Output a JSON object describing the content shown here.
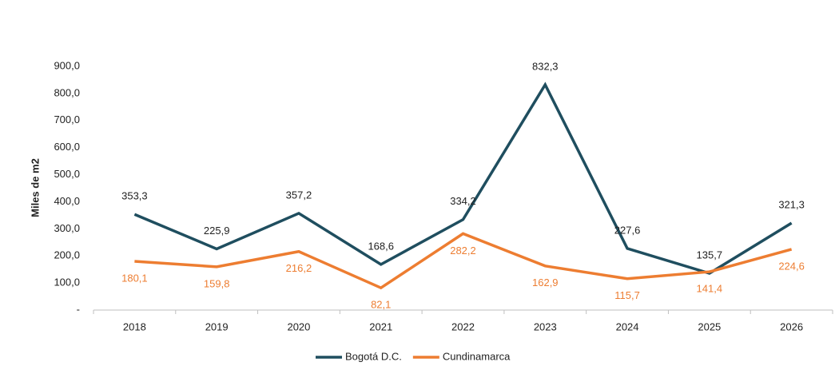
{
  "chart_data": {
    "type": "line",
    "y_label": "Miles de m2",
    "categories": [
      "2018",
      "2019",
      "2020",
      "2021",
      "2022",
      "2023",
      "2024",
      "2025",
      "2026"
    ],
    "series": [
      {
        "name": "Bogotá D.C.",
        "color": "#1f4e5f",
        "values": [
          353.3,
          225.9,
          357.2,
          168.6,
          334.2,
          832.3,
          227.6,
          135.7,
          321.3
        ],
        "value_labels": [
          "353,3",
          "225,9",
          "357,2",
          "168,6",
          "334,2",
          "832,3",
          "227,6",
          "135,7",
          "321,3"
        ]
      },
      {
        "name": "Cundinamarca",
        "color": "#ed7d31",
        "values": [
          180.1,
          159.8,
          216.2,
          82.1,
          282.2,
          162.9,
          115.7,
          141.4,
          224.6
        ],
        "value_labels": [
          "180,1",
          "159,8",
          "216,2",
          "82,1",
          "282,2",
          "162,9",
          "115,7",
          "141,4",
          "224,6"
        ]
      }
    ],
    "ylim": [
      0,
      900
    ],
    "yticks": [
      {
        "value": 0,
        "label": "-"
      },
      {
        "value": 100,
        "label": "100,0"
      },
      {
        "value": 200,
        "label": "200,0"
      },
      {
        "value": 300,
        "label": "300,0"
      },
      {
        "value": 400,
        "label": "400,0"
      },
      {
        "value": 500,
        "label": "500,0"
      },
      {
        "value": 600,
        "label": "600,0"
      },
      {
        "value": 700,
        "label": "700,0"
      },
      {
        "value": 800,
        "label": "800,0"
      },
      {
        "value": 900,
        "label": "900,0"
      }
    ],
    "legend": "bottom"
  }
}
